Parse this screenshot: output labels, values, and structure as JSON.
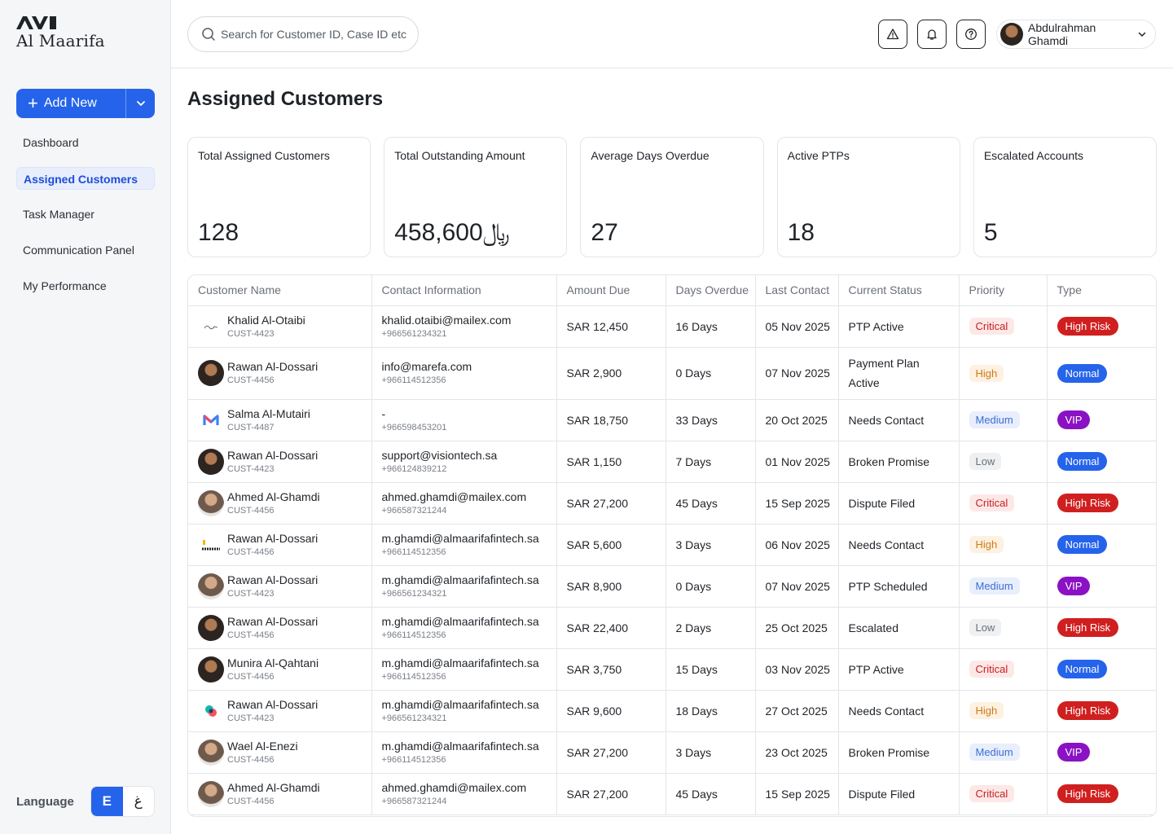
{
  "app": {
    "logo_mark": "AVI",
    "name": "Al Maarifa"
  },
  "sidebar": {
    "add_new_label": "Add New",
    "nav": [
      {
        "label": "Dashboard",
        "active": false
      },
      {
        "label": "Assigned Customers",
        "active": true
      },
      {
        "label": "Task Manager",
        "active": false
      },
      {
        "label": "Communication Panel",
        "active": false
      },
      {
        "label": "My Performance",
        "active": false
      }
    ],
    "language_label": "Language",
    "lang_en": "E",
    "lang_ar": "غ"
  },
  "header": {
    "search_placeholder": "Search for Customer ID, Case ID etc",
    "user_name": "Abdulrahman Ghamdi"
  },
  "page": {
    "title": "Assigned Customers"
  },
  "stats": [
    {
      "label": "Total Assigned Customers",
      "value": "128"
    },
    {
      "label": "Total Outstanding Amount",
      "value": "﷼458,600"
    },
    {
      "label": "Average Days Overdue",
      "value": "27"
    },
    {
      "label": "Active PTPs",
      "value": "18"
    },
    {
      "label": "Escalated Accounts",
      "value": "5"
    }
  ],
  "table": {
    "headers": [
      "Customer Name",
      "Contact Information",
      "Amount Due",
      "Days Overdue",
      "Last Contact",
      "Current Status",
      "Priority",
      "Type"
    ],
    "rows": [
      {
        "name": "Khalid Al-Otaibi",
        "id": "CUST-4423",
        "email": "khalid.otaibi@mailex.com",
        "phone": "+966561234321",
        "amount": "SAR 12,450",
        "days": "16 Days",
        "last": "05 Nov 2025",
        "status": "PTP Active",
        "priority": "Critical",
        "type": "High Risk"
      },
      {
        "name": "Rawan Al-Dossari",
        "id": "CUST-4456",
        "email": "info@marefa.com",
        "phone": "+966114512356",
        "amount": "SAR 2,900",
        "days": "0 Days",
        "last": "07 Nov 2025",
        "status": "Payment Plan Active",
        "priority": "High",
        "type": "Normal"
      },
      {
        "name": "Salma Al-Mutairi",
        "id": "CUST-4487",
        "email": "-",
        "phone": "+966598453201",
        "amount": "SAR 18,750",
        "days": "33 Days",
        "last": "20 Oct 2025",
        "status": "Needs Contact",
        "priority": "Medium",
        "type": "VIP"
      },
      {
        "name": "Rawan Al-Dossari",
        "id": "CUST-4423",
        "email": "support@visiontech.sa",
        "phone": "+966124839212",
        "amount": "SAR 1,150",
        "days": "7 Days",
        "last": "01 Nov 2025",
        "status": "Broken Promise",
        "priority": "Low",
        "type": "Normal"
      },
      {
        "name": "Ahmed Al-Ghamdi",
        "id": "CUST-4456",
        "email": "ahmed.ghamdi@mailex.com",
        "phone": "+966587321244",
        "amount": "SAR 27,200",
        "days": "45 Days",
        "last": "15 Sep 2025",
        "status": "Dispute Filed",
        "priority": "Critical",
        "type": "High Risk"
      },
      {
        "name": "Rawan Al-Dossari",
        "id": "CUST-4456",
        "email": "m.ghamdi@almaarifafintech.sa",
        "phone": "+966114512356",
        "amount": "SAR 5,600",
        "days": "3 Days",
        "last": "06 Nov 2025",
        "status": "Needs Contact",
        "priority": "High",
        "type": "Normal"
      },
      {
        "name": "Rawan Al-Dossari",
        "id": "CUST-4423",
        "email": "m.ghamdi@almaarifafintech.sa",
        "phone": "+966561234321",
        "amount": "SAR 8,900",
        "days": "0 Days",
        "last": "07 Nov 2025",
        "status": "PTP Scheduled",
        "priority": "Medium",
        "type": "VIP"
      },
      {
        "name": "Rawan Al-Dossari",
        "id": "CUST-4456",
        "email": "m.ghamdi@almaarifafintech.sa",
        "phone": "+966114512356",
        "amount": "SAR 22,400",
        "days": "2 Days",
        "last": "25 Oct 2025",
        "status": "Escalated",
        "priority": "Low",
        "type": "High Risk"
      },
      {
        "name": "Munira Al-Qahtani",
        "id": "CUST-4456",
        "email": "m.ghamdi@almaarifafintech.sa",
        "phone": "+966114512356",
        "amount": "SAR 3,750",
        "days": "15 Days",
        "last": "03 Nov 2025",
        "status": "PTP Active",
        "priority": "Critical",
        "type": "Normal"
      },
      {
        "name": "Rawan Al-Dossari",
        "id": "CUST-4423",
        "email": "m.ghamdi@almaarifafintech.sa",
        "phone": "+966561234321",
        "amount": "SAR 9,600",
        "days": "18 Days",
        "last": "27 Oct 2025",
        "status": "Needs Contact",
        "priority": "High",
        "type": "High Risk"
      },
      {
        "name": "Wael Al-Enezi",
        "id": "CUST-4456",
        "email": "m.ghamdi@almaarifafintech.sa",
        "phone": "+966114512356",
        "amount": "SAR 27,200",
        "days": "3 Days",
        "last": "23 Oct 2025",
        "status": "Broken Promise",
        "priority": "Medium",
        "type": "VIP"
      },
      {
        "name": "Ahmed Al-Ghamdi",
        "id": "CUST-4456",
        "email": "ahmed.ghamdi@mailex.com",
        "phone": "+966587321244",
        "amount": "SAR 27,200",
        "days": "45 Days",
        "last": "15 Sep 2025",
        "status": "Dispute Filed",
        "priority": "Critical",
        "type": "High Risk"
      }
    ]
  },
  "colors": {
    "accent": "#2563eb",
    "critical": "#c81e1e",
    "high_risk": "#d01f1f",
    "vip": "#8a12c4"
  }
}
